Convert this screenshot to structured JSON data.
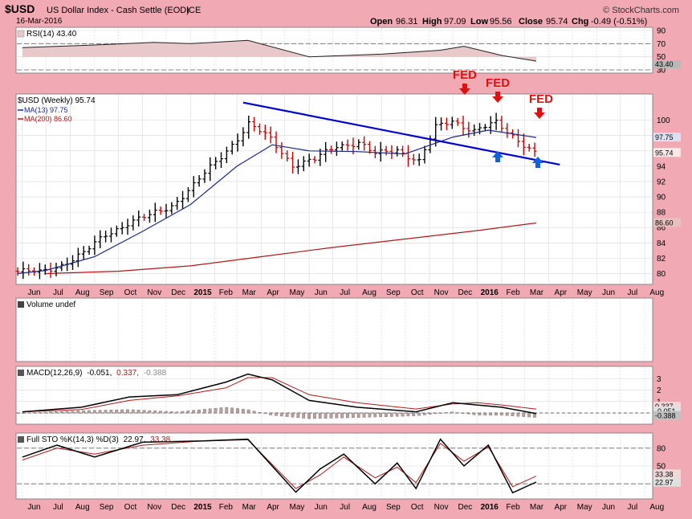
{
  "header": {
    "symbol": "$USD",
    "name": "US Dollar Index - Cash Settle (EOD)",
    "exchange": "ICE",
    "watermark": "© StockCharts.com",
    "date": "16-Mar-2016",
    "ohlc": {
      "open_label": "Open",
      "open": "96.31",
      "high_label": "High",
      "high": "97.09",
      "low_label": "Low",
      "low": "95.56",
      "close_label": "Close",
      "close": "95.74",
      "chg_label": "Chg",
      "chg": "-0.49 (-0.51%)"
    }
  },
  "colors": {
    "background": "#f1a9b4",
    "panel": "#ffffff",
    "up_bar": "#000000",
    "down_bar": "#cc0000",
    "trendline": "#0000cc",
    "ma13": "#1a2a88",
    "ma200": "#b01818",
    "fed_red": "#e01010",
    "arrow_blue": "#1060e0",
    "grid": "#d8d8d8"
  },
  "x_axis_labels": [
    "Jun",
    "Jul",
    "Aug",
    "Sep",
    "Oct",
    "Nov",
    "Dec",
    "2015",
    "Feb",
    "Mar",
    "Apr",
    "May",
    "Jun",
    "Jul",
    "Aug",
    "Sep",
    "Oct",
    "Nov",
    "Dec",
    "2016",
    "Feb",
    "Mar",
    "Apr",
    "May",
    "Jun",
    "Jul",
    "Aug"
  ],
  "x_axis_bold": [
    "2015",
    "2016"
  ],
  "chart_data": [
    {
      "type": "line",
      "name": "rsi",
      "legend": "RSI(14) 43.40",
      "yticks": [
        30,
        50,
        70,
        90
      ],
      "ylim": [
        30,
        90
      ],
      "guides": [
        30,
        70
      ],
      "value_label": "43.40",
      "dates": [
        "2014-06-01",
        "2014-09-01",
        "2014-11-15",
        "2015-01-01",
        "2015-03-15",
        "2015-06-01",
        "2015-09-01",
        "2015-11-15",
        "2015-12-15",
        "2016-02-01",
        "2016-03-16"
      ],
      "values": [
        64,
        68,
        72,
        70,
        75,
        50,
        54,
        60,
        66,
        52,
        43.4
      ]
    },
    {
      "type": "ohlc",
      "name": "price",
      "legend": "$USD (Weekly) 95.74",
      "ma13_legend": "MA(13) 97.75",
      "ma200_legend": "MA(200) 86.60",
      "yticks": [
        80,
        82,
        84,
        86,
        88,
        90,
        92,
        94,
        96,
        98,
        100
      ],
      "ylim": [
        79,
        103
      ],
      "price_label": "95.74",
      "ma13_label": "97.75",
      "ma200_label": "86.60",
      "close_dates": [
        "2014-05-26",
        "2014-06-23",
        "2014-07-21",
        "2014-08-18",
        "2014-09-15",
        "2014-10-13",
        "2014-11-10",
        "2014-12-08",
        "2015-01-05",
        "2015-02-02",
        "2015-03-02",
        "2015-03-16",
        "2015-04-13",
        "2015-05-11",
        "2015-06-08",
        "2015-07-06",
        "2015-08-03",
        "2015-08-24",
        "2015-09-21",
        "2015-10-19",
        "2015-11-09",
        "2015-11-30",
        "2015-12-28",
        "2016-01-25",
        "2016-02-22",
        "2016-03-14"
      ],
      "closes": [
        80.3,
        80.1,
        81.2,
        82.6,
        85.1,
        86.6,
        87.5,
        88.9,
        91.5,
        94.5,
        97.7,
        99.5,
        97.5,
        94.2,
        94.8,
        96.7,
        97.1,
        95.5,
        96.2,
        94.6,
        99.0,
        100.0,
        98.6,
        99.6,
        97.5,
        95.74
      ],
      "ma13_dates": [
        "2014-05-26",
        "2014-07-01",
        "2014-09-01",
        "2014-11-01",
        "2015-01-01",
        "2015-03-01",
        "2015-04-15",
        "2015-06-01",
        "2015-08-01",
        "2015-10-01",
        "2015-12-01",
        "2016-01-15",
        "2016-03-16"
      ],
      "ma13": [
        80.0,
        80.4,
        82.2,
        85.5,
        89.0,
        94.0,
        96.8,
        96.0,
        95.9,
        95.6,
        97.8,
        98.7,
        97.75
      ],
      "ma200_dates": [
        "2014-07-01",
        "2014-10-01",
        "2015-01-01",
        "2015-04-01",
        "2015-07-01",
        "2015-10-01",
        "2016-01-01",
        "2016-03-16"
      ],
      "ma200": [
        80.0,
        80.3,
        81.0,
        82.2,
        83.4,
        84.5,
        85.6,
        86.6
      ],
      "trendline": {
        "dates": [
          "2015-03-09",
          "2016-04-15"
        ],
        "values": [
          102.3,
          94.2
        ]
      },
      "annotations": [
        {
          "text": "FED",
          "date": "2015-12-16"
        },
        {
          "text": "FED",
          "date": "2016-01-27"
        },
        {
          "text": "FED",
          "date": "2016-03-16"
        }
      ],
      "up_arrows": [
        "2016-01-27",
        "2016-03-16"
      ]
    },
    {
      "type": "bar",
      "name": "volume",
      "legend": "Volume undef"
    },
    {
      "type": "line",
      "name": "macd",
      "legend_main": "MACD(12,26,9)",
      "legend_macd": "-0.051,",
      "legend_signal": "0.337,",
      "legend_hist": "-0.388",
      "yticks": [
        0,
        1,
        2,
        3
      ],
      "ylim": [
        -0.7,
        3.8
      ],
      "labels": [
        "0.337",
        "-0.051",
        "-0.388"
      ],
      "dates": [
        "2014-06-01",
        "2014-08-15",
        "2014-10-15",
        "2014-12-15",
        "2015-02-15",
        "2015-03-15",
        "2015-04-15",
        "2015-06-01",
        "2015-08-01",
        "2015-10-15",
        "2015-12-01",
        "2016-01-01",
        "2016-02-01",
        "2016-03-16"
      ],
      "macd": [
        0.1,
        0.5,
        1.4,
        1.6,
        2.7,
        3.4,
        2.9,
        1.1,
        0.5,
        0.1,
        0.9,
        0.7,
        0.5,
        -0.05
      ],
      "signal": [
        0.1,
        0.3,
        1.1,
        1.5,
        2.2,
        3.1,
        3.1,
        1.6,
        0.9,
        0.35,
        0.8,
        0.9,
        0.7,
        0.34
      ]
    },
    {
      "type": "line",
      "name": "sto",
      "legend_main": "Full STO %K(14,3) %D(3)",
      "legend_k": "22.97,",
      "legend_d": "33.38",
      "yticks": [
        20,
        50,
        80
      ],
      "ylim": [
        0,
        100
      ],
      "guides": [
        20,
        80
      ],
      "labels": [
        "33.38",
        "22.97"
      ],
      "dates": [
        "2014-06-01",
        "2014-07-15",
        "2014-09-01",
        "2014-11-01",
        "2015-01-15",
        "2015-03-15",
        "2015-05-15",
        "2015-06-15",
        "2015-07-15",
        "2015-08-24",
        "2015-09-21",
        "2015-10-15",
        "2015-11-15",
        "2015-12-15",
        "2016-01-15",
        "2016-02-15",
        "2016-03-16"
      ],
      "k": [
        65,
        85,
        65,
        90,
        92,
        95,
        6,
        45,
        70,
        20,
        55,
        12,
        95,
        50,
        85,
        5,
        23
      ],
      "d": [
        60,
        80,
        70,
        85,
        92,
        94,
        12,
        35,
        65,
        30,
        48,
        22,
        88,
        58,
        82,
        15,
        33
      ]
    }
  ]
}
